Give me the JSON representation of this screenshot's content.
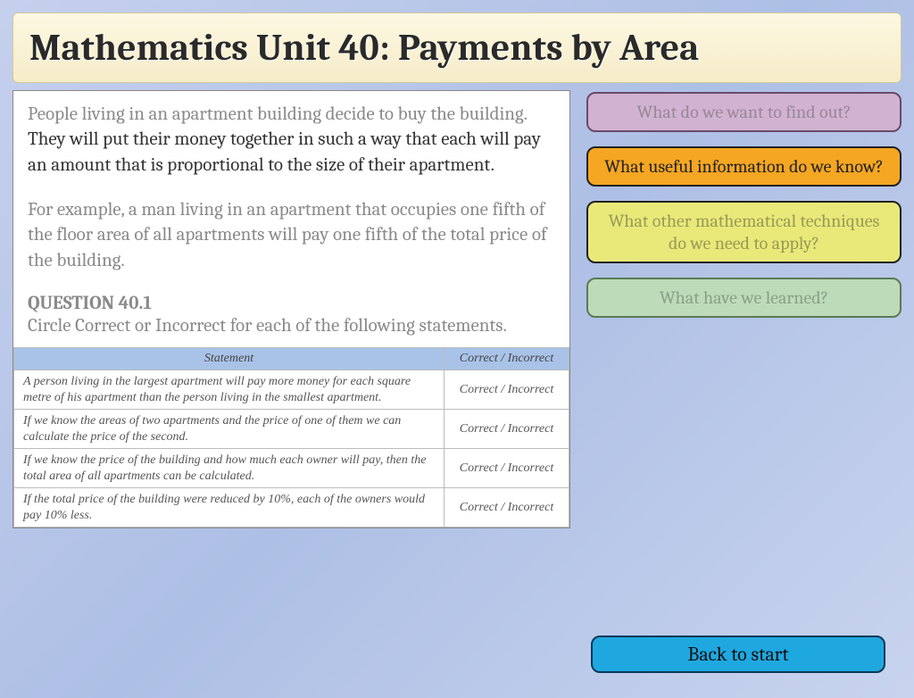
{
  "title": "Mathematics Unit 40: Payments by Area",
  "content": {
    "p1_grey": "People living in an apartment building decide to buy the building.",
    "p1_dark": "They will put their money together in such a way that each will pay an amount that is proportional to the size of their apartment.",
    "p2": "For example, a man living in an apartment that occupies one fifth of the floor area of all apartments will pay one fifth of the total price of the building.",
    "q_label": "QUESTION 40.1",
    "q_text": "Circle Correct or Incorrect for each of the following statements."
  },
  "table": {
    "headers": [
      "Statement",
      "Correct / Incorrect"
    ],
    "rows": [
      {
        "stmt": "A person living in the largest apartment will pay more money for each square metre of his apartment than the person living in the smallest apartment.",
        "ans": "Correct / Incorrect"
      },
      {
        "stmt": "If we know the areas of two apartments and the price of one of them we can calculate the price of the second.",
        "ans": "Correct / Incorrect"
      },
      {
        "stmt": "If we know the price of the building and how much each owner will pay, then the total area of all apartments can be calculated.",
        "ans": "Correct / Incorrect"
      },
      {
        "stmt": "If the total price of the building were reduced by 10%, each of the owners would pay 10% less.",
        "ans": "Correct / Incorrect"
      }
    ]
  },
  "sidebar": {
    "b1": "What do we want to find out?",
    "b2": "What useful information do we know?",
    "b3": "What other mathematical techniques do we need to apply?",
    "b4": "What have we learned?"
  },
  "back": "Back to start",
  "colors": {
    "purple": "#d1b3d1",
    "orange": "#f5a623",
    "yellow": "#e9e97a",
    "green": "#bddbb8",
    "blue": "#1fa8e0"
  }
}
